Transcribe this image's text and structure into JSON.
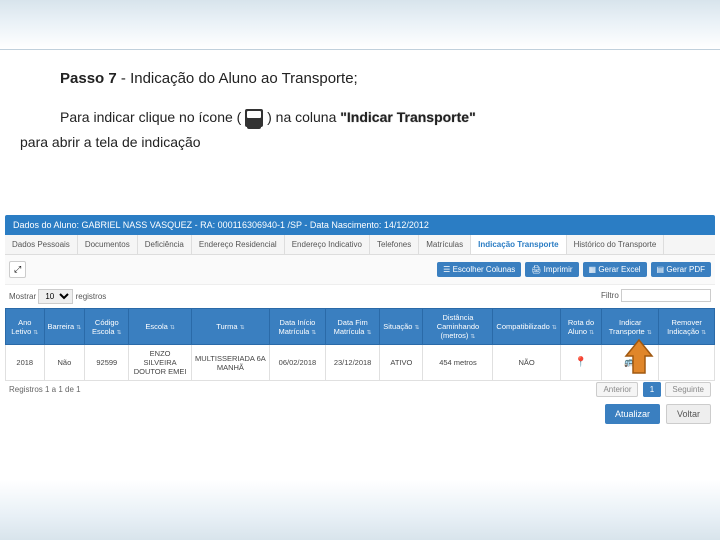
{
  "step": {
    "label": "Passo 7",
    "sep": " - ",
    "title": "Indicação do Aluno ao Transporte;"
  },
  "instruction": {
    "p1_a": "Para indicar clique no ícone ( ",
    "p1_b": " ) na coluna ",
    "highlight": "\"Indicar Transporte\"",
    "p2": "para abrir a tela de indicação"
  },
  "bluebar": "Dados do Aluno: GABRIEL NASS VASQUEZ - RA: 000116306940-1 /SP - Data Nascimento: 14/12/2012",
  "tabs": [
    "Dados Pessoais",
    "Documentos",
    "Deficiência",
    "Endereço Residencial",
    "Endereço Indicativo",
    "Telefones",
    "Matrículas",
    "Indicação Transporte",
    "Histórico do Transporte"
  ],
  "active_tab_index": 7,
  "toolbar": {
    "expand": "⤢"
  },
  "actions": [
    "Escolher Colunas",
    "Imprimir",
    "Gerar Excel",
    "Gerar PDF"
  ],
  "action_icons": [
    "☰",
    "🖨",
    "▦",
    "▤"
  ],
  "show": {
    "label_a": "Mostrar",
    "value": "10",
    "label_b": "registros"
  },
  "filter": {
    "label": "Filtro",
    "value": ""
  },
  "columns": [
    "Ano Letivo",
    "Barreira",
    "Código Escola",
    "Escola",
    "Turma",
    "Data Início Matrícula",
    "Data Fim Matrícula",
    "Situação",
    "Distância Caminhando (metros)",
    "Compatibilizado",
    "Rota do Aluno",
    "Indicar Transporte",
    "Remover Indicação"
  ],
  "row": [
    "2018",
    "Não",
    "92599",
    "ENZO SILVEIRA DOUTOR EMEI",
    "MULTISSERIADA 6A MANHÃ",
    "06/02/2018",
    "23/12/2018",
    "ATIVO",
    "454 metros",
    "NÃO",
    "",
    "",
    ""
  ],
  "footer": {
    "info": "Registros 1 a 1 de 1",
    "prev": "Anterior",
    "page": "1",
    "next": "Seguinte"
  },
  "buttons": {
    "update": "Atualizar",
    "back": "Voltar"
  },
  "colors": {
    "blue": "#3a7fc0",
    "blue_dark": "#2b7dc4",
    "arrow_fill": "#e0862a",
    "arrow_stroke": "#a05810"
  }
}
